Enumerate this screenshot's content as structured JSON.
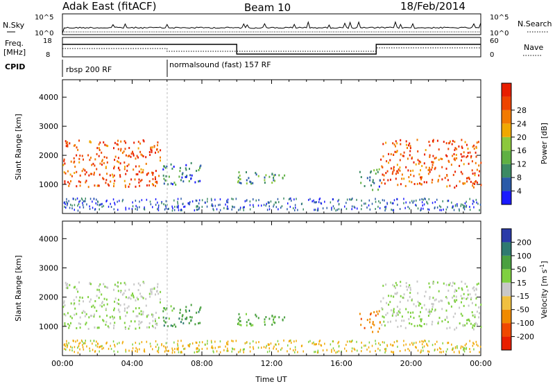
{
  "header": {
    "title": "Adak East (fitACF)",
    "beam": "Beam 10",
    "date": "18/Feb/2014"
  },
  "nsky_panel": {
    "left_label": "N.Sky",
    "right_label": "N.Search",
    "left_ticks": [
      "10^5",
      "10^0"
    ],
    "right_ticks": [
      "10^5",
      "10^0"
    ]
  },
  "freq_panel": {
    "left_label_line1": "Freq.",
    "left_label_line2": "[MHz]",
    "left_ticks": [
      "18",
      "8"
    ],
    "right_label": "Nave",
    "right_ticks": [
      "60",
      "0"
    ],
    "freq_segments": [
      {
        "start_hour": 0,
        "end_hour": 10,
        "mhz": 17
      },
      {
        "start_hour": 10,
        "end_hour": 18,
        "mhz": 10
      },
      {
        "start_hour": 18,
        "end_hour": 24,
        "mhz": 17
      }
    ]
  },
  "cpid": {
    "label": "CPID",
    "programs": [
      {
        "name": "rbsp 200 RF",
        "start_hour": 0
      },
      {
        "name": "normalsound (fast) 157 RF",
        "start_hour": 6
      }
    ]
  },
  "x_axis": {
    "label": "Time UT",
    "ticks": [
      "00:00",
      "04:00",
      "08:00",
      "12:00",
      "16:00",
      "20:00",
      "00:00"
    ],
    "range_hours": [
      0,
      24
    ]
  },
  "power_panel": {
    "ylabel": "Slant Range [km]",
    "yticks": [
      "1000",
      "2000",
      "3000",
      "4000"
    ],
    "colorbar_label": "Power [dB]",
    "colorbar_ticks": [
      "4",
      "8",
      "12",
      "16",
      "20",
      "24",
      "28"
    ],
    "colorbar_colors": [
      "#1a1aff",
      "#2a5aa8",
      "#3c8a64",
      "#5fb043",
      "#8cc83c",
      "#f0a800",
      "#f27a00",
      "#ee4400",
      "#e81e00"
    ]
  },
  "velocity_panel": {
    "ylabel": "Slant Range [km]",
    "yticks": [
      "1000",
      "2000",
      "3000",
      "4000"
    ],
    "colorbar_label_main": "Velocity [m s",
    "colorbar_label_sup": "-1",
    "colorbar_label_end": "]",
    "colorbar_ticks": [
      "200",
      "100",
      "50",
      "15",
      "-15",
      "-50",
      "-100",
      "-200"
    ],
    "colorbar_colors": [
      "#2a3aa8",
      "#2f7a70",
      "#4aa040",
      "#7fd040",
      "#c8c8c8",
      "#f0c040",
      "#f08a00",
      "#f04800",
      "#e81e00"
    ]
  },
  "chart_data": {
    "type": "heatmap",
    "x_unit": "hours UT",
    "y_unit": "slant range km",
    "xlim": [
      0,
      24
    ],
    "ylim": [
      0,
      4600
    ],
    "scatter_regions": [
      {
        "t_start": 0.0,
        "t_end": 5.6,
        "r_start": 850,
        "r_end": 2500,
        "power_db": 26,
        "velocity": 0
      },
      {
        "t_start": 5.6,
        "t_end": 7.9,
        "r_start": 900,
        "r_end": 1700,
        "power_db": 7,
        "velocity": 60
      },
      {
        "t_start": 9.8,
        "t_end": 12.8,
        "r_start": 950,
        "r_end": 1400,
        "power_db": 11,
        "velocity": 40
      },
      {
        "t_start": 17.0,
        "t_end": 18.2,
        "r_start": 700,
        "r_end": 1500,
        "power_db": 9,
        "velocity": -60
      },
      {
        "t_start": 18.2,
        "t_end": 24.0,
        "r_start": 850,
        "r_end": 2500,
        "power_db": 26,
        "velocity": 0
      }
    ]
  }
}
